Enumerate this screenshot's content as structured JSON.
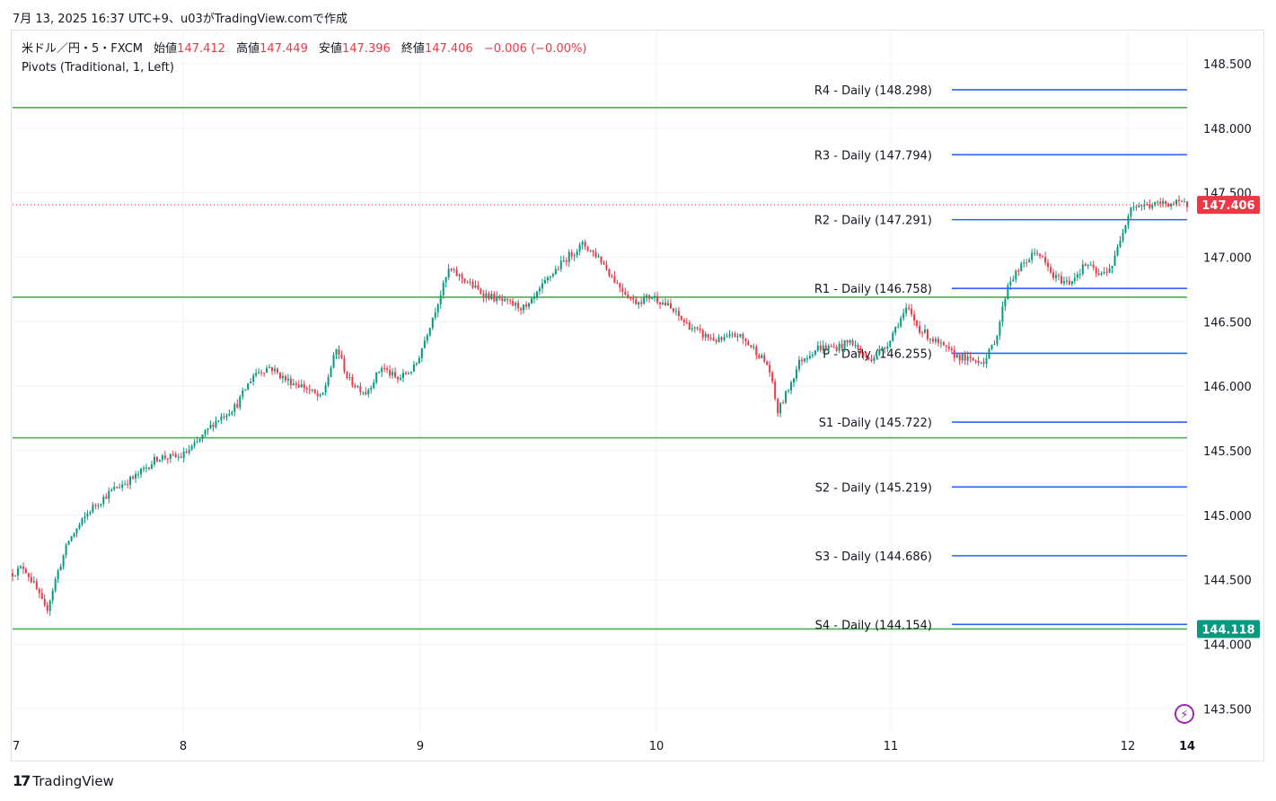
{
  "header": {
    "caption": "7月 13, 2025 16:37 UTC+9、u03がTradingView.comで作成"
  },
  "legend": {
    "symbol": "米ドル／円・5・FXCM",
    "open_label": "始値",
    "open_value": "147.412",
    "high_label": "高値",
    "high_value": "147.449",
    "low_label": "安値",
    "low_value": "147.396",
    "close_label": "終値",
    "close_value": "147.406",
    "change": "−0.006 (−0.00%)",
    "indicator": "Pivots (Traditional, 1, Left)"
  },
  "footer": {
    "brand": "TradingView"
  },
  "icons": {
    "logo": "tradingview-logo-icon",
    "alert": "lightning-icon"
  },
  "colors": {
    "pivot_line": "#2962ff",
    "horizontal_line": "#4caf50",
    "up_candle": "#089981",
    "down_candle": "#f23645",
    "last_price_tag": "#f23645",
    "hline_tag": "#089981"
  },
  "chart_data": {
    "type": "candlestick",
    "instrument": "USD/JPY 5m FXCM",
    "y_axis": {
      "ylim": [
        143.3,
        148.75
      ],
      "ticks": [
        "148.500",
        "148.000",
        "147.500",
        "147.000",
        "146.500",
        "146.000",
        "145.500",
        "145.000",
        "144.500",
        "144.000",
        "143.500"
      ]
    },
    "x_axis": {
      "labels": [
        {
          "label": "7",
          "t": 7.0
        },
        {
          "label": "8",
          "t": 8.0
        },
        {
          "label": "9",
          "t": 9.0
        },
        {
          "label": "10",
          "t": 10.0
        },
        {
          "label": "11",
          "t": 11.0
        },
        {
          "label": "12",
          "t": 12.0
        },
        {
          "label": "14",
          "t": 12.25
        }
      ]
    },
    "price_path": [
      [
        7.0,
        144.55
      ],
      [
        7.05,
        144.6
      ],
      [
        7.1,
        144.45
      ],
      [
        7.15,
        144.25
      ],
      [
        7.2,
        144.55
      ],
      [
        7.25,
        144.8
      ],
      [
        7.35,
        145.05
      ],
      [
        7.45,
        145.2
      ],
      [
        7.55,
        145.3
      ],
      [
        7.65,
        145.45
      ],
      [
        7.75,
        145.45
      ],
      [
        7.82,
        145.55
      ],
      [
        7.9,
        145.72
      ],
      [
        8.0,
        145.85
      ],
      [
        8.08,
        146.1
      ],
      [
        8.15,
        146.15
      ],
      [
        8.22,
        146.05
      ],
      [
        8.3,
        146.0
      ],
      [
        8.38,
        145.9
      ],
      [
        8.45,
        146.3
      ],
      [
        8.5,
        146.05
      ],
      [
        8.58,
        145.95
      ],
      [
        8.65,
        146.15
      ],
      [
        8.72,
        146.05
      ],
      [
        8.8,
        146.15
      ],
      [
        8.88,
        146.55
      ],
      [
        8.95,
        146.9
      ],
      [
        9.0,
        146.85
      ],
      [
        9.1,
        146.72
      ],
      [
        9.2,
        146.65
      ],
      [
        9.3,
        146.6
      ],
      [
        9.4,
        146.85
      ],
      [
        9.48,
        147.0
      ],
      [
        9.55,
        147.1
      ],
      [
        9.62,
        147.0
      ],
      [
        9.7,
        146.8
      ],
      [
        9.78,
        146.65
      ],
      [
        9.86,
        146.7
      ],
      [
        9.93,
        146.62
      ],
      [
        10.0,
        146.5
      ],
      [
        10.08,
        146.4
      ],
      [
        10.16,
        146.35
      ],
      [
        10.24,
        146.4
      ],
      [
        10.32,
        146.28
      ],
      [
        10.38,
        146.15
      ],
      [
        10.42,
        145.8
      ],
      [
        10.46,
        145.95
      ],
      [
        10.52,
        146.2
      ],
      [
        10.6,
        146.3
      ],
      [
        10.68,
        146.3
      ],
      [
        10.75,
        146.35
      ],
      [
        10.82,
        146.2
      ],
      [
        10.9,
        146.3
      ],
      [
        10.96,
        146.5
      ],
      [
        11.0,
        146.6
      ],
      [
        11.05,
        146.45
      ],
      [
        11.12,
        146.35
      ],
      [
        11.2,
        146.25
      ],
      [
        11.28,
        146.2
      ],
      [
        11.35,
        146.2
      ],
      [
        11.4,
        146.4
      ],
      [
        11.45,
        146.8
      ],
      [
        11.52,
        146.95
      ],
      [
        11.58,
        147.05
      ],
      [
        11.65,
        146.85
      ],
      [
        11.72,
        146.8
      ],
      [
        11.8,
        146.95
      ],
      [
        11.86,
        146.85
      ],
      [
        11.92,
        146.95
      ],
      [
        11.96,
        147.2
      ],
      [
        12.0,
        147.4
      ],
      [
        12.08,
        147.4
      ],
      [
        12.15,
        147.42
      ],
      [
        12.25,
        147.41
      ]
    ],
    "last_price": 147.406,
    "last_price_label": "147.406",
    "pivots": [
      {
        "label": "R4 - Daily (148.298)",
        "value": 148.298
      },
      {
        "label": "R3 - Daily (147.794)",
        "value": 147.794
      },
      {
        "label": "R2 - Daily (147.291)",
        "value": 147.291
      },
      {
        "label": "R1 - Daily (146.758)",
        "value": 146.758
      },
      {
        "label": "P - Daily (146.255)",
        "value": 146.255
      },
      {
        "label": "S1 -Daily (145.722)",
        "value": 145.722
      },
      {
        "label": "S2 - Daily (145.219)",
        "value": 145.219
      },
      {
        "label": "S3 - Daily (144.686)",
        "value": 144.686
      },
      {
        "label": "S4 - Daily (144.154)",
        "value": 144.154
      }
    ],
    "horizontal_lines": [
      148.16,
      146.69,
      145.6,
      144.118
    ],
    "horizontal_line_tag": {
      "value": 144.118,
      "label": "144.118"
    }
  }
}
